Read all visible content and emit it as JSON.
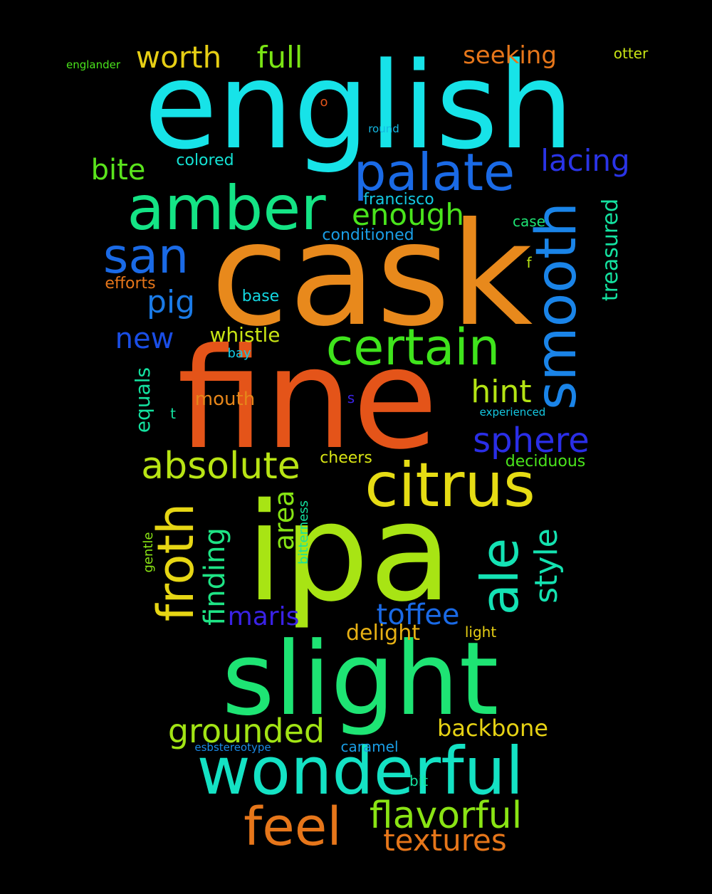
{
  "background": "#000000",
  "words": [
    {
      "id": "english",
      "text": "english",
      "color": "#17e3e8"
    },
    {
      "id": "cask",
      "text": "cask",
      "color": "#e8891c"
    },
    {
      "id": "fine",
      "text": "fine",
      "color": "#e45419"
    },
    {
      "id": "ipa",
      "text": "ipa",
      "color": "#a8e414"
    },
    {
      "id": "slight",
      "text": "slight",
      "color": "#1ee474"
    },
    {
      "id": "wonderful",
      "text": "wonderful",
      "color": "#14e2c4"
    },
    {
      "id": "amber",
      "text": "amber",
      "color": "#14e485"
    },
    {
      "id": "palate",
      "text": "palate",
      "color": "#1a6ae6"
    },
    {
      "id": "smooth",
      "text": "smooth",
      "color": "#1a84e8"
    },
    {
      "id": "citrus",
      "text": "citrus",
      "color": "#e6dc14"
    },
    {
      "id": "certain",
      "text": "certain",
      "color": "#3fe41c"
    },
    {
      "id": "san",
      "text": "san",
      "color": "#1a6ae6"
    },
    {
      "id": "froth",
      "text": "froth",
      "color": "#e6d614"
    },
    {
      "id": "ale",
      "text": "ale",
      "color": "#14e2b4"
    },
    {
      "id": "feel",
      "text": "feel",
      "color": "#e6761a"
    },
    {
      "id": "flavorful",
      "text": "flavorful",
      "color": "#8ae414"
    },
    {
      "id": "absolute",
      "text": "absolute",
      "color": "#b8e414"
    },
    {
      "id": "grounded",
      "text": "grounded",
      "color": "#a2e414"
    },
    {
      "id": "sphere",
      "text": "sphere",
      "color": "#2a2ee6"
    },
    {
      "id": "style",
      "text": "style",
      "color": "#14e2b0"
    },
    {
      "id": "toffee",
      "text": "toffee",
      "color": "#1a6ae6"
    },
    {
      "id": "textures",
      "text": "textures",
      "color": "#e6761a"
    },
    {
      "id": "hint",
      "text": "hint",
      "color": "#b4e414"
    },
    {
      "id": "enough",
      "text": "enough",
      "color": "#4ae41c"
    },
    {
      "id": "worth",
      "text": "worth",
      "color": "#e6ce14"
    },
    {
      "id": "full",
      "text": "full",
      "color": "#7ae414"
    },
    {
      "id": "pig",
      "text": "pig",
      "color": "#1a7ae6"
    },
    {
      "id": "lacing",
      "text": "lacing",
      "color": "#2a34e6"
    },
    {
      "id": "bite",
      "text": "bite",
      "color": "#5ae41c"
    },
    {
      "id": "new",
      "text": "new",
      "color": "#1a4ee6"
    },
    {
      "id": "finding",
      "text": "finding",
      "color": "#1ee485"
    },
    {
      "id": "area",
      "text": "area",
      "color": "#86e414"
    },
    {
      "id": "maris",
      "text": "maris",
      "color": "#3a22e6"
    },
    {
      "id": "backbone",
      "text": "backbone",
      "color": "#e6d214"
    },
    {
      "id": "seeking",
      "text": "seeking",
      "color": "#e6761a"
    },
    {
      "id": "treasured",
      "text": "treasured",
      "color": "#14e2a0"
    },
    {
      "id": "whistle",
      "text": "whistle",
      "color": "#c8e414"
    },
    {
      "id": "delight",
      "text": "delight",
      "color": "#e6b014"
    },
    {
      "id": "equals",
      "text": "equals",
      "color": "#14e2a0"
    },
    {
      "id": "mouth",
      "text": "mouth",
      "color": "#e6861a"
    },
    {
      "id": "cheers",
      "text": "cheers",
      "color": "#d8e414"
    },
    {
      "id": "deciduous",
      "text": "deciduous",
      "color": "#4ae41c"
    },
    {
      "id": "francisco",
      "text": "francisco",
      "color": "#14c8e2"
    },
    {
      "id": "conditioned",
      "text": "conditioned",
      "color": "#1a9ee6"
    },
    {
      "id": "colored",
      "text": "colored",
      "color": "#14e2d4"
    },
    {
      "id": "efforts",
      "text": "efforts",
      "color": "#e6761a"
    },
    {
      "id": "base",
      "text": "base",
      "color": "#14d8e2"
    },
    {
      "id": "case",
      "text": "case",
      "color": "#1ee474"
    },
    {
      "id": "caramel",
      "text": "caramel",
      "color": "#1a9ee6"
    },
    {
      "id": "light",
      "text": "light",
      "color": "#e6ce14"
    },
    {
      "id": "bit",
      "text": "bit",
      "color": "#14e2a0"
    },
    {
      "id": "bay",
      "text": "bay",
      "color": "#14c8e2"
    },
    {
      "id": "bitterness",
      "text": "bitterness",
      "color": "#14e2a0"
    },
    {
      "id": "gentle",
      "text": "gentle",
      "color": "#8ae414"
    },
    {
      "id": "otter",
      "text": "otter",
      "color": "#c8e414"
    },
    {
      "id": "englander",
      "text": "englander",
      "color": "#4ae41c"
    },
    {
      "id": "round",
      "text": "round",
      "color": "#14b8e2"
    },
    {
      "id": "experienced",
      "text": "experienced",
      "color": "#14c8e2"
    },
    {
      "id": "esbstereotype",
      "text": "esbstereotype",
      "color": "#1a8ae6"
    },
    {
      "id": "o",
      "text": "o",
      "color": "#e4541a"
    },
    {
      "id": "f",
      "text": "f",
      "color": "#b8e414"
    },
    {
      "id": "s",
      "text": "s",
      "color": "#3a22e6"
    },
    {
      "id": "t",
      "text": "t",
      "color": "#14e2a0"
    }
  ]
}
